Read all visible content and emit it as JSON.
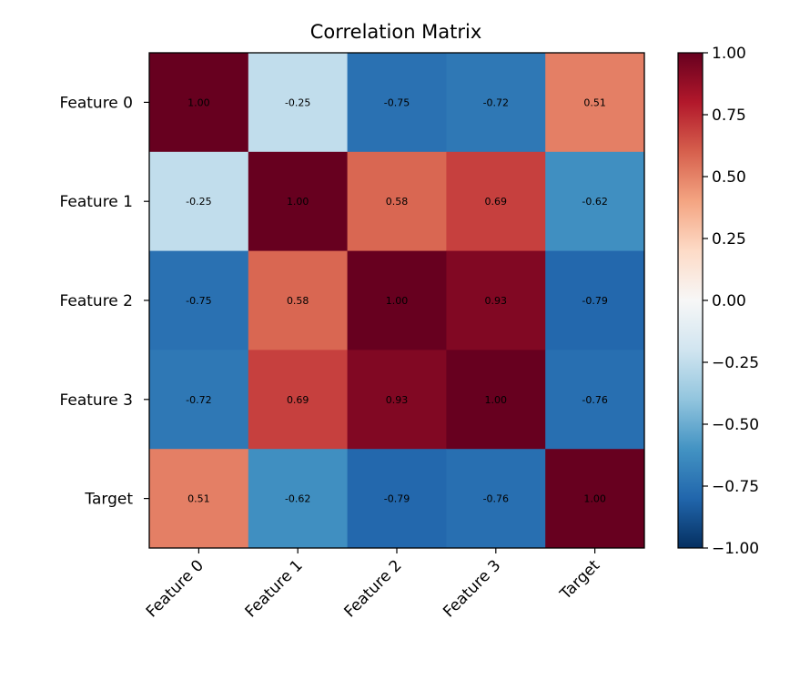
{
  "chart_data": {
    "type": "heatmap",
    "title": "Correlation Matrix",
    "row_labels": [
      "Feature 0",
      "Feature 1",
      "Feature 2",
      "Feature 3",
      "Target"
    ],
    "col_labels": [
      "Feature 0",
      "Feature 1",
      "Feature 2",
      "Feature 3",
      "Target"
    ],
    "values": [
      [
        1.0,
        -0.25,
        -0.75,
        -0.72,
        0.51
      ],
      [
        -0.25,
        1.0,
        0.58,
        0.69,
        -0.62
      ],
      [
        -0.75,
        0.58,
        1.0,
        0.93,
        -0.79
      ],
      [
        -0.72,
        0.69,
        0.93,
        1.0,
        -0.76
      ],
      [
        0.51,
        -0.62,
        -0.79,
        -0.76,
        1.0
      ]
    ],
    "cell_labels": [
      [
        "1.00",
        "-0.25",
        "-0.75",
        "-0.72",
        "0.51"
      ],
      [
        "-0.25",
        "1.00",
        "0.58",
        "0.69",
        "-0.62"
      ],
      [
        "-0.75",
        "0.58",
        "1.00",
        "0.93",
        "-0.79"
      ],
      [
        "-0.72",
        "0.69",
        "0.93",
        "1.00",
        "-0.76"
      ],
      [
        "0.51",
        "-0.62",
        "-0.79",
        "-0.76",
        "1.00"
      ]
    ],
    "colormap": "RdBu_r",
    "vmin": -1.0,
    "vmax": 1.0,
    "colorbar": {
      "ticks": [
        1.0,
        0.75,
        0.5,
        0.25,
        0.0,
        -0.25,
        -0.5,
        -0.75,
        -1.0
      ],
      "tick_labels": [
        "1.00",
        "0.75",
        "0.50",
        "0.25",
        "0.00",
        "−0.25",
        "−0.50",
        "−0.75",
        "−1.00"
      ]
    }
  }
}
